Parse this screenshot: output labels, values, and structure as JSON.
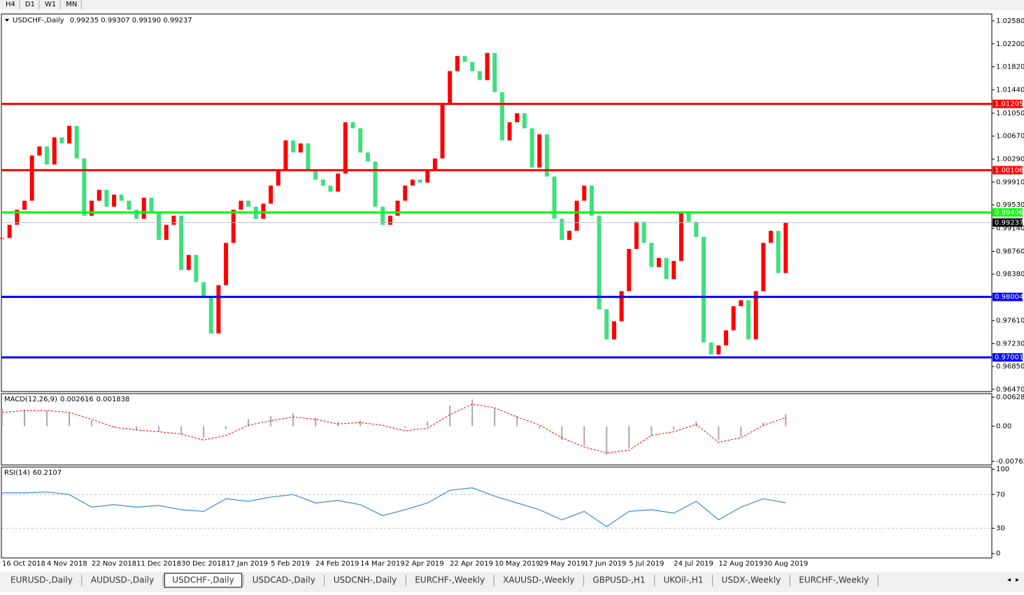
{
  "toolbar": [
    "H4",
    "D1",
    "W1",
    "MN"
  ],
  "chart_data": [
    {
      "type": "candlestick",
      "title": "USDCHF-,Daily",
      "subtitle": "0.99235 0.99307 0.99190 0.99237",
      "categories": [
        "16 Oct 2018",
        null,
        null,
        null,
        null,
        null,
        "4 Nov 2018",
        null,
        null,
        null,
        null,
        null,
        "22 Nov 2018",
        null,
        null,
        null,
        null,
        null,
        "11 Dec 2018",
        null,
        null,
        null,
        null,
        null,
        "30 Dec 2018",
        null,
        null,
        null,
        null,
        null,
        "17 Jan 2019",
        null,
        null,
        null,
        null,
        null,
        "5 Feb 2019",
        null,
        null,
        null,
        null,
        null,
        "24 Feb 2019",
        null,
        null,
        null,
        null,
        null,
        "14 Mar 2019",
        null,
        null,
        null,
        null,
        null,
        "2 Apr 2019",
        null,
        null,
        null,
        null,
        null,
        "22 Apr 2019",
        null,
        null,
        null,
        null,
        null,
        "10 May 2019",
        null,
        null,
        null,
        null,
        null,
        "29 May 2019",
        null,
        null,
        null,
        null,
        null,
        "17 Jun 2019",
        null,
        null,
        null,
        null,
        null,
        "5 Jul 2019",
        null,
        null,
        null,
        null,
        null,
        "24 Jul 2019",
        null,
        null,
        null,
        null,
        null,
        "12 Aug 2019",
        null,
        null,
        null,
        null,
        null,
        "30 Aug 2019",
        null,
        null,
        null
      ],
      "close": [
        0.9898,
        0.992,
        0.9945,
        0.996,
        1.0035,
        1.005,
        1.002,
        1.0065,
        1.0055,
        1.0084,
        1.003,
        0.9935,
        0.996,
        0.9978,
        0.995,
        0.997,
        0.996,
        0.9945,
        0.993,
        0.9965,
        0.994,
        0.9895,
        0.992,
        0.9935,
        0.9845,
        0.987,
        0.9825,
        0.98,
        0.974,
        0.982,
        0.989,
        0.9945,
        0.996,
        0.995,
        0.993,
        0.9955,
        0.9985,
        1.001,
        1.006,
        1.004,
        1.0055,
        1.001,
        0.9995,
        0.9985,
        0.9975,
        1.0005,
        1.009,
        1.008,
        1.004,
        1.0025,
        0.995,
        0.992,
        0.9935,
        0.996,
        0.9985,
        0.9995,
        0.999,
        1.001,
        1.003,
        1.012,
        1.0175,
        1.02,
        1.019,
        1.0175,
        1.016,
        1.0205,
        1.014,
        1.006,
        1.009,
        1.0105,
        1.008,
        1.0015,
        1.007,
        1.0,
        0.993,
        0.9895,
        0.991,
        0.996,
        0.9985,
        0.9935,
        0.978,
        0.973,
        0.976,
        0.981,
        0.988,
        0.9925,
        0.989,
        0.985,
        0.9865,
        0.983,
        0.986,
        0.994,
        0.9925,
        0.99,
        0.9725,
        0.9705,
        0.972,
        0.9745,
        0.9785,
        0.9795,
        0.973,
        0.981,
        0.989,
        0.991,
        0.984,
        0.99237
      ],
      "up_color": "#ff0000",
      "down_color": "#3ee07e",
      "ylim": [
        0.96435,
        1.02696
      ],
      "yticks": [
        {
          "value": 1.0258,
          "label": "1.02580"
        },
        {
          "value": 1.022,
          "label": "1.02200"
        },
        {
          "value": 1.0182,
          "label": "1.01820"
        },
        {
          "value": 1.0144,
          "label": "1.01440"
        },
        {
          "value": 1.0105,
          "label": "1.01050"
        },
        {
          "value": 1.0067,
          "label": "1.00670"
        },
        {
          "value": 1.0029,
          "label": "1.00290"
        },
        {
          "value": 0.9991,
          "label": "0.99910"
        },
        {
          "value": 0.9953,
          "label": "0.99530"
        },
        {
          "value": 0.9914,
          "label": "0.99140"
        },
        {
          "value": 0.9876,
          "label": "0.98760"
        },
        {
          "value": 0.9838,
          "label": "0.98380"
        },
        {
          "value": 0.9761,
          "label": "0.97610"
        },
        {
          "value": 0.9723,
          "label": "0.97230"
        },
        {
          "value": 0.9685,
          "label": "0.96850"
        },
        {
          "value": 0.9647,
          "label": "0.96470"
        }
      ],
      "levels": [
        {
          "price": 1.01205,
          "color": "#ff0000"
        },
        {
          "price": 1.00106,
          "color": "#ff0000"
        },
        {
          "price": 0.99406,
          "color": "#00ff00"
        },
        {
          "price": 0.98004,
          "color": "#0000ff"
        },
        {
          "price": 0.97001,
          "color": "#0000ff"
        }
      ],
      "current_price": 0.99237
    },
    {
      "type": "macd",
      "title": "MACD(12,26,9)",
      "histogram": [
        0.0038,
        0.0036,
        0.0033,
        0.003,
        0.0012,
        -0.0003,
        -0.0008,
        -0.0012,
        -0.0018,
        -0.0025,
        -0.0006,
        0.0015,
        0.0022,
        0.0028,
        0.0018,
        0.001,
        0.0012,
        0.0,
        -0.0004,
        0.001,
        0.0045,
        0.0058,
        0.004,
        0.0022,
        -0.0005,
        -0.003,
        -0.0042,
        -0.0062,
        -0.0048,
        -0.002,
        -0.0008,
        0.001,
        -0.003,
        -0.0022,
        0.0008,
        0.002616
      ],
      "signal": [
        0.003,
        0.0034,
        0.0034,
        0.003,
        0.0015,
        -0.0002,
        -0.0008,
        -0.0012,
        -0.0017,
        -0.003,
        -0.002,
        0.0002,
        0.0012,
        0.002,
        0.0015,
        0.0005,
        0.0008,
        0.0002,
        -0.001,
        -0.0004,
        0.0025,
        0.0048,
        0.004,
        0.002,
        0.0003,
        -0.0025,
        -0.0045,
        -0.0058,
        -0.0052,
        -0.002,
        -0.0012,
        0.0004,
        -0.0035,
        -0.0025,
        0.0002,
        0.001838
      ],
      "histogram_color": "#a8a8a8",
      "signal_color": "#ff0000",
      "ylim": [
        -0.00841,
        0.007076
      ],
      "yticks": [
        0.006286,
        {
          "value": 0,
          "label": "0.00"
        },
        -0.00762
      ]
    },
    {
      "type": "line",
      "title": "RSI(14)",
      "values": [
        72,
        72,
        73,
        70,
        55,
        58,
        55,
        57,
        52,
        50,
        65,
        62,
        67,
        70,
        60,
        63,
        58,
        45,
        52,
        60,
        75,
        78,
        68,
        60,
        52,
        40,
        50,
        32,
        50,
        52,
        48,
        62,
        40,
        55,
        65,
        60.2107
      ],
      "color": "#3a8ad6",
      "ylim": [
        -5.2,
        102.6
      ],
      "yticks": [
        0,
        30,
        70,
        100
      ]
    }
  ],
  "tabs": [
    "EURUSD-,Daily",
    "AUDUSD-,Daily",
    "USDCHF-,Daily",
    "USDCAD-,Daily",
    "USDCNH-,Daily",
    "EURCHF-,Weekly",
    "XAUUSD-,Weekly",
    "GBPUSD-,H1",
    "UKOil-,H1",
    "USDX-,Weekly",
    "EURCHF-,Weekly"
  ],
  "active_tab": 2
}
